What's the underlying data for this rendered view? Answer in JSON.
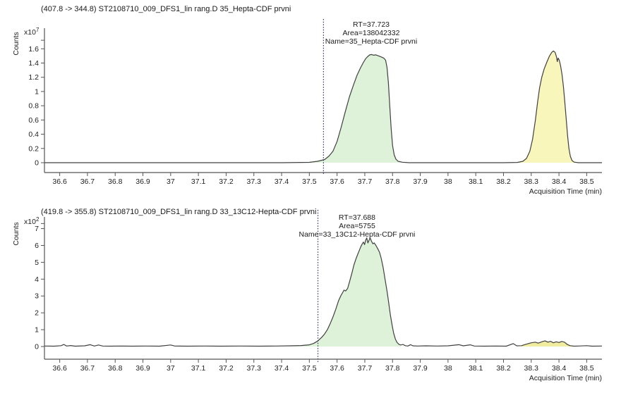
{
  "page": {
    "background": "#ffffff",
    "text_color": "#1a1a1a"
  },
  "chart_data": [
    {
      "type": "area",
      "header": "(407.8 -> 344.8) ST2108710_009_DFS1_lin rang.D 35_Hepta-CDF prvni",
      "ylabel": "Counts",
      "scale_mantissa": "x10",
      "scale_exponent": "7",
      "xlabel": "Acquisition Time (min)",
      "xlim": [
        36.545,
        38.555
      ],
      "ylim": [
        0,
        1.85
      ],
      "xticks": [
        36.6,
        36.7,
        36.8,
        36.9,
        37,
        37.1,
        37.2,
        37.3,
        37.4,
        37.5,
        37.6,
        37.7,
        37.8,
        37.9,
        38,
        38.1,
        38.2,
        38.3,
        38.4,
        38.5
      ],
      "xtick_labels": [
        "36.6",
        "36.7",
        "36.8",
        "36.9",
        "37",
        "37.1",
        "37.2",
        "37.3",
        "37.4",
        "37.5",
        "37.6",
        "37.7",
        "37.8",
        "37.9",
        "38",
        "38.1",
        "38.2",
        "38.3",
        "38.4",
        "38.5"
      ],
      "yticks": [
        0,
        0.2,
        0.4,
        0.6,
        0.8,
        1,
        1.2,
        1.4,
        1.6,
        1.72
      ],
      "ytick_labels": [
        "0",
        "0.2",
        "0.4",
        "0.6",
        "0.8",
        "1",
        "1.2",
        "1.4",
        "1.6",
        ""
      ],
      "marker_x": 37.551,
      "annotation": {
        "x_center": 37.723,
        "lines": [
          "RT=37.723",
          "Area=138042332",
          "Name=35_Hepta-CDF prvni"
        ]
      },
      "line_color": "#404040",
      "marker_color": "#2e3466",
      "axis_color": "#555555",
      "peaks": [
        {
          "fill": "#ddf2d8",
          "t_start": 37.4,
          "t_end": 37.87
        },
        {
          "fill": "#f8f6bb",
          "t_start": 38.2,
          "t_end": 38.48
        }
      ],
      "trace": [
        [
          36.545,
          0
        ],
        [
          36.8,
          0
        ],
        [
          37.1,
          0
        ],
        [
          37.4,
          0
        ],
        [
          37.5,
          0.005
        ],
        [
          37.53,
          0.02
        ],
        [
          37.555,
          0.045
        ],
        [
          37.57,
          0.09
        ],
        [
          37.585,
          0.16
        ],
        [
          37.6,
          0.3
        ],
        [
          37.615,
          0.5
        ],
        [
          37.63,
          0.72
        ],
        [
          37.645,
          0.93
        ],
        [
          37.66,
          1.1
        ],
        [
          37.672,
          1.23
        ],
        [
          37.684,
          1.33
        ],
        [
          37.695,
          1.41
        ],
        [
          37.703,
          1.46
        ],
        [
          37.71,
          1.49
        ],
        [
          37.718,
          1.515
        ],
        [
          37.725,
          1.52
        ],
        [
          37.732,
          1.51
        ],
        [
          37.74,
          1.515
        ],
        [
          37.75,
          1.5
        ],
        [
          37.76,
          1.485
        ],
        [
          37.768,
          1.47
        ],
        [
          37.775,
          1.44
        ],
        [
          37.78,
          1.34
        ],
        [
          37.785,
          1.12
        ],
        [
          37.79,
          0.8
        ],
        [
          37.795,
          0.48
        ],
        [
          37.8,
          0.24
        ],
        [
          37.806,
          0.11
        ],
        [
          37.812,
          0.05
        ],
        [
          37.82,
          0.02
        ],
        [
          37.835,
          0.007
        ],
        [
          37.86,
          0
        ],
        [
          38.0,
          0
        ],
        [
          38.2,
          0
        ],
        [
          38.25,
          0.004
        ],
        [
          38.27,
          0.02
        ],
        [
          38.283,
          0.06
        ],
        [
          38.295,
          0.16
        ],
        [
          38.305,
          0.33
        ],
        [
          38.315,
          0.6
        ],
        [
          38.323,
          0.85
        ],
        [
          38.33,
          1.05
        ],
        [
          38.338,
          1.2
        ],
        [
          38.347,
          1.32
        ],
        [
          38.357,
          1.42
        ],
        [
          38.366,
          1.5
        ],
        [
          38.374,
          1.55
        ],
        [
          38.38,
          1.57
        ],
        [
          38.386,
          1.55
        ],
        [
          38.391,
          1.49
        ],
        [
          38.394,
          1.42
        ],
        [
          38.397,
          1.47
        ],
        [
          38.401,
          1.44
        ],
        [
          38.406,
          1.36
        ],
        [
          38.411,
          1.24
        ],
        [
          38.416,
          1.07
        ],
        [
          38.421,
          0.86
        ],
        [
          38.426,
          0.62
        ],
        [
          38.431,
          0.38
        ],
        [
          38.436,
          0.2
        ],
        [
          38.441,
          0.09
        ],
        [
          38.447,
          0.03
        ],
        [
          38.455,
          0.008
        ],
        [
          38.47,
          0
        ],
        [
          38.555,
          0
        ]
      ]
    },
    {
      "type": "area",
      "header": "(419.8 -> 355.8) ST2108710_009_DFS1_lin rang.D 33_13C12-Hepta-CDF prvni",
      "ylabel": "Counts",
      "scale_mantissa": "x10",
      "scale_exponent": "2",
      "xlabel": "Acquisition Time (min)",
      "xlim": [
        36.545,
        38.555
      ],
      "ylim": [
        0,
        7.4
      ],
      "xticks": [
        36.6,
        36.7,
        36.8,
        36.9,
        37,
        37.1,
        37.2,
        37.3,
        37.4,
        37.5,
        37.6,
        37.7,
        37.8,
        37.9,
        38,
        38.1,
        38.2,
        38.3,
        38.4,
        38.5
      ],
      "xtick_labels": [
        "36.6",
        "36.7",
        "36.8",
        "36.9",
        "37",
        "37.1",
        "37.2",
        "37.3",
        "37.4",
        "37.5",
        "37.6",
        "37.7",
        "37.8",
        "37.9",
        "38",
        "38.1",
        "38.2",
        "38.3",
        "38.4",
        "38.5"
      ],
      "yticks": [
        0,
        1,
        2,
        3,
        4,
        5,
        6,
        7,
        7.3
      ],
      "ytick_labels": [
        "0",
        "1",
        "2",
        "3",
        "4",
        "5",
        "6",
        "7",
        ""
      ],
      "marker_x": 37.531,
      "annotation": {
        "x_center": 37.672,
        "lines": [
          "RT=37.688",
          "Area=5755",
          "Name=33_13C12-Hepta-CDF prvni"
        ]
      },
      "line_color": "#404040",
      "marker_color": "#2e3466",
      "axis_color": "#555555",
      "peaks": [
        {
          "fill": "#ddf2d8",
          "t_start": 37.43,
          "t_end": 37.83
        },
        {
          "fill": "#f0eda0",
          "t_start": 38.265,
          "t_end": 38.455
        }
      ],
      "trace": [
        [
          36.545,
          0.03
        ],
        [
          36.58,
          0.02
        ],
        [
          36.605,
          0.05
        ],
        [
          36.615,
          0.12
        ],
        [
          36.625,
          0.03
        ],
        [
          36.64,
          0.06
        ],
        [
          36.655,
          0.02
        ],
        [
          36.69,
          0.04
        ],
        [
          36.71,
          0.11
        ],
        [
          36.725,
          0.03
        ],
        [
          36.74,
          0.09
        ],
        [
          36.755,
          0.03
        ],
        [
          36.78,
          0.02
        ],
        [
          36.82,
          0.03
        ],
        [
          36.86,
          0.02
        ],
        [
          36.91,
          0.03
        ],
        [
          36.96,
          0.02
        ],
        [
          37.0,
          0.09
        ],
        [
          37.015,
          0.03
        ],
        [
          37.06,
          0.02
        ],
        [
          37.12,
          0.03
        ],
        [
          37.18,
          0.02
        ],
        [
          37.25,
          0.03
        ],
        [
          37.32,
          0.02
        ],
        [
          37.38,
          0.03
        ],
        [
          37.43,
          0.04
        ],
        [
          37.47,
          0.06
        ],
        [
          37.5,
          0.1
        ],
        [
          37.515,
          0.18
        ],
        [
          37.53,
          0.32
        ],
        [
          37.545,
          0.55
        ],
        [
          37.555,
          0.75
        ],
        [
          37.565,
          1.0
        ],
        [
          37.575,
          1.35
        ],
        [
          37.585,
          1.75
        ],
        [
          37.595,
          2.2
        ],
        [
          37.605,
          2.7
        ],
        [
          37.613,
          3.0
        ],
        [
          37.62,
          3.2
        ],
        [
          37.625,
          3.35
        ],
        [
          37.631,
          3.3
        ],
        [
          37.638,
          3.45
        ],
        [
          37.646,
          3.9
        ],
        [
          37.654,
          4.4
        ],
        [
          37.661,
          4.85
        ],
        [
          37.668,
          5.2
        ],
        [
          37.674,
          5.45
        ],
        [
          37.68,
          5.7
        ],
        [
          37.686,
          5.95
        ],
        [
          37.691,
          6.1
        ],
        [
          37.695,
          6.2
        ],
        [
          37.699,
          6.05
        ],
        [
          37.703,
          6.3
        ],
        [
          37.707,
          6.45
        ],
        [
          37.711,
          6.15
        ],
        [
          37.715,
          6.3
        ],
        [
          37.719,
          6.45
        ],
        [
          37.724,
          6.25
        ],
        [
          37.729,
          6.1
        ],
        [
          37.734,
          6.15
        ],
        [
          37.74,
          6.0
        ],
        [
          37.747,
          5.8
        ],
        [
          37.753,
          5.6
        ],
        [
          37.759,
          5.25
        ],
        [
          37.766,
          4.7
        ],
        [
          37.773,
          4.0
        ],
        [
          37.78,
          3.3
        ],
        [
          37.786,
          2.6
        ],
        [
          37.792,
          1.9
        ],
        [
          37.798,
          1.3
        ],
        [
          37.804,
          0.8
        ],
        [
          37.81,
          0.45
        ],
        [
          37.816,
          0.25
        ],
        [
          37.823,
          0.13
        ],
        [
          37.83,
          0.09
        ],
        [
          37.838,
          0.12
        ],
        [
          37.846,
          0.05
        ],
        [
          37.855,
          0.03
        ],
        [
          37.865,
          0.11
        ],
        [
          37.873,
          0.04
        ],
        [
          37.89,
          0.03
        ],
        [
          37.92,
          0.04
        ],
        [
          37.96,
          0.03
        ],
        [
          38.0,
          0.04
        ],
        [
          38.04,
          0.11
        ],
        [
          38.055,
          0.04
        ],
        [
          38.08,
          0.1
        ],
        [
          38.095,
          0.03
        ],
        [
          38.13,
          0.02
        ],
        [
          38.17,
          0.03
        ],
        [
          38.21,
          0.02
        ],
        [
          38.235,
          0.17
        ],
        [
          38.248,
          0.04
        ],
        [
          38.265,
          0.05
        ],
        [
          38.28,
          0.13
        ],
        [
          38.3,
          0.22
        ],
        [
          38.315,
          0.26
        ],
        [
          38.325,
          0.2
        ],
        [
          38.34,
          0.29
        ],
        [
          38.35,
          0.34
        ],
        [
          38.36,
          0.26
        ],
        [
          38.37,
          0.31
        ],
        [
          38.38,
          0.22
        ],
        [
          38.39,
          0.28
        ],
        [
          38.4,
          0.24
        ],
        [
          38.41,
          0.3
        ],
        [
          38.42,
          0.26
        ],
        [
          38.43,
          0.12
        ],
        [
          38.44,
          0.05
        ],
        [
          38.455,
          0.02
        ],
        [
          38.47,
          0.03
        ],
        [
          38.5,
          0.05
        ],
        [
          38.52,
          0.02
        ],
        [
          38.555,
          0.03
        ]
      ]
    }
  ]
}
